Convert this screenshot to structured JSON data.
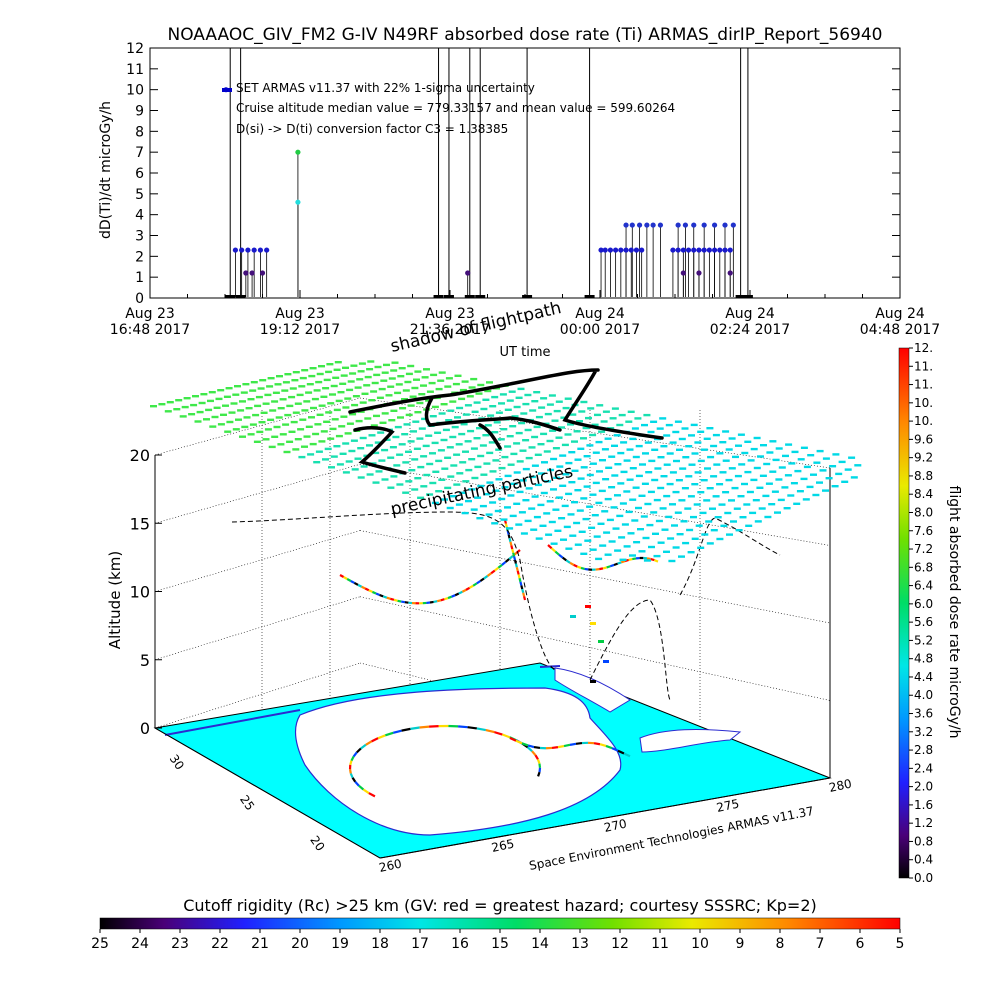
{
  "title": "NOAAAOC_GIV_FM2 G-IV    N49RF   absorbed dose rate (Ti) ARMAS_dirIP_Report_56940",
  "top_panel": {
    "ylabel": "dD(Ti)/dt microGy/h",
    "xlabel": "UT time",
    "legend_lines": [
      "SET ARMAS v11.37 with 22% 1-sigma uncertainty",
      "Cruise altitude median value = 779.33157 and mean value = 599.60264",
      "D(si) -> D(ti) conversion factor C3 = 1.38385"
    ],
    "yticks": [
      "0",
      "1",
      "2",
      "3",
      "4",
      "5",
      "6",
      "7",
      "8",
      "9",
      "10",
      "11",
      "12"
    ],
    "xticks": [
      {
        "date": "Aug 23",
        "time": "16:48 2017"
      },
      {
        "date": "Aug 23",
        "time": "19:12 2017"
      },
      {
        "date": "Aug 23",
        "time": "21:36 2017"
      },
      {
        "date": "Aug 24",
        "time": "00:00 2017"
      },
      {
        "date": "Aug 24",
        "time": "02:24 2017"
      },
      {
        "date": "Aug 24",
        "time": "04:48 2017"
      }
    ]
  },
  "main_panel": {
    "zlabel": "Altitude (km)",
    "zticks": [
      "0",
      "5",
      "10",
      "15",
      "20"
    ],
    "lat_ticks": [
      "30",
      "25",
      "20"
    ],
    "lon_ticks": [
      "260",
      "265",
      "270",
      "275",
      "280"
    ],
    "label_shadow": "shadow of flightpath",
    "label_precip": "precipitating particles",
    "credit": "Space Environment Technologies ARMAS v11.37"
  },
  "right_colorbar": {
    "label": "flight absorbed dose rate microGy/h",
    "ticks": [
      "0.0",
      "0.4",
      "0.8",
      "1.2",
      "1.6",
      "2.0",
      "2.4",
      "2.8",
      "3.2",
      "3.6",
      "4.0",
      "4.4",
      "4.8",
      "5.2",
      "5.6",
      "6.0",
      "6.4",
      "6.8",
      "7.2",
      "7.6",
      "8.0",
      "8.4",
      "8.8",
      "9.2",
      "9.6",
      "10.",
      "10.",
      "11.",
      "11.",
      "12."
    ]
  },
  "bottom_colorbar": {
    "title": "Cutoff rigidity (Rc) >25 km (GV: red = greatest hazard; courtesy SSSRC; Kp=2)",
    "ticks": [
      "25",
      "24",
      "23",
      "22",
      "21",
      "20",
      "19",
      "18",
      "17",
      "16",
      "15",
      "14",
      "13",
      "12",
      "11",
      "10",
      "9",
      "8",
      "7",
      "6",
      "5"
    ]
  },
  "colors": {
    "ocean": "#00ffff",
    "land": "#ffffff",
    "grid_dots": "#1ee68c",
    "track": "#000000"
  },
  "chart_data": {
    "type": "scatter",
    "title": "NOAAAOC_GIV_FM2 G-IV    N49RF   absorbed dose rate (Ti) ARMAS_dirIP_Report_56940",
    "xlabel": "UT time",
    "ylabel": "dD(Ti)/dt microGy/h",
    "ylim": [
      0,
      12
    ],
    "xlim": [
      "2017-08-23 16:48",
      "2017-08-24 04:48"
    ],
    "grid": false,
    "series": [
      {
        "x": [
          "2017-08-23 18:10",
          "2017-08-23 18:16",
          "2017-08-23 18:22",
          "2017-08-23 18:28",
          "2017-08-23 18:34",
          "2017-08-23 18:40",
          "2017-08-23 18:20",
          "2017-08-23 18:26",
          "2017-08-23 18:36",
          "2017-08-23 19:10",
          "2017-08-23 19:10",
          "2017-08-23 21:53",
          "2017-08-24 00:01",
          "2017-08-24 00:05",
          "2017-08-24 00:10",
          "2017-08-24 00:15",
          "2017-08-24 00:20",
          "2017-08-24 00:25",
          "2017-08-24 00:30",
          "2017-08-24 00:35",
          "2017-08-24 00:40",
          "2017-08-24 00:25",
          "2017-08-24 00:31",
          "2017-08-24 00:38",
          "2017-08-24 00:45",
          "2017-08-24 00:51",
          "2017-08-24 00:58",
          "2017-08-24 01:10",
          "2017-08-24 01:15",
          "2017-08-24 01:20",
          "2017-08-24 01:25",
          "2017-08-24 01:30",
          "2017-08-24 01:35",
          "2017-08-24 01:40",
          "2017-08-24 01:45",
          "2017-08-24 01:50",
          "2017-08-24 01:55",
          "2017-08-24 02:00",
          "2017-08-24 02:05",
          "2017-08-24 01:15",
          "2017-08-24 01:22",
          "2017-08-24 01:30",
          "2017-08-24 01:40",
          "2017-08-24 01:50",
          "2017-08-24 02:00",
          "2017-08-24 02:08",
          "2017-08-24 01:20",
          "2017-08-24 01:35",
          "2017-08-24 02:05"
        ],
        "values": [
          2.3,
          2.3,
          2.3,
          2.3,
          2.3,
          2.3,
          1.2,
          1.2,
          1.2,
          7.0,
          4.6,
          1.2,
          2.3,
          2.3,
          2.3,
          2.3,
          2.3,
          2.3,
          2.3,
          2.3,
          2.3,
          3.5,
          3.5,
          3.5,
          3.5,
          3.5,
          3.5,
          2.3,
          2.3,
          2.3,
          2.3,
          2.3,
          2.3,
          2.3,
          2.3,
          2.3,
          2.3,
          2.3,
          2.3,
          3.5,
          3.5,
          3.5,
          3.5,
          3.5,
          3.5,
          3.5,
          1.2,
          1.2,
          1.2
        ]
      }
    ],
    "baseline_times": [
      "2017-08-23 18:05",
      "2017-08-23 18:15",
      "2017-08-23 21:25",
      "2017-08-23 21:35",
      "2017-08-23 21:55",
      "2017-08-23 22:05",
      "2017-08-23 22:50",
      "2017-08-23 23:50",
      "2017-08-24 02:15",
      "2017-08-24 02:22"
    ],
    "secondary_chart": {
      "type": "scatter",
      "zlabel": "Altitude (km)",
      "zlim": [
        0,
        20
      ],
      "note": "3-D flight track over Gulf of Mexico region with cutoff-rigidity field",
      "lon_range": [
        260,
        280
      ],
      "lat_range": [
        20,
        30
      ]
    }
  }
}
